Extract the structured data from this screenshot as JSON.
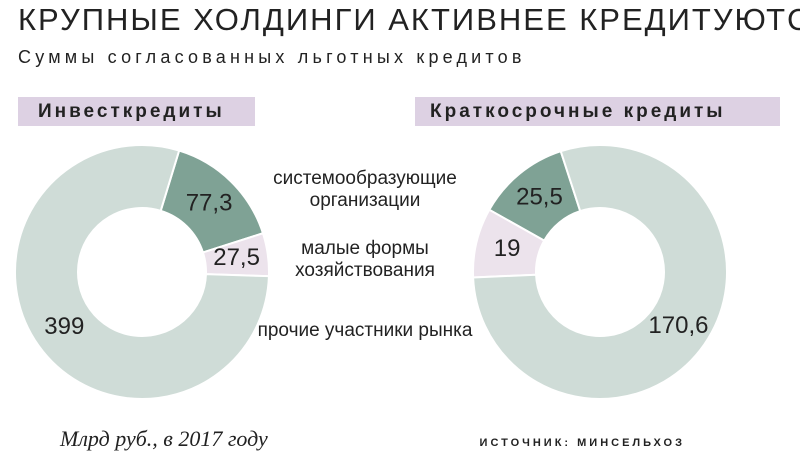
{
  "title": "КРУПНЫЕ ХОЛДИНГИ АКТИВНЕЕ КРЕДИТУЮТСЯ",
  "subtitle": "Суммы согласованных льготных кредитов",
  "legend": [
    "системообразующие организации",
    "малые формы хозяйствования",
    "прочие участники рынка"
  ],
  "note": "Млрд руб., в 2017 году",
  "source": "ИСТОЧНИК: МИНСЕЛЬХОЗ",
  "chart_data": [
    {
      "type": "donut",
      "title": "Инвесткредиты",
      "values": [
        77.3,
        27.5,
        399
      ],
      "value_labels": [
        "77,3",
        "27,5",
        "399"
      ],
      "colors": [
        "#7fa295",
        "#ece3ec",
        "#cfdcd7"
      ]
    },
    {
      "type": "donut",
      "title": "Краткосрочные кредиты",
      "values": [
        25.5,
        19,
        170.6
      ],
      "value_labels": [
        "25,5",
        "19",
        "170,6"
      ],
      "colors": [
        "#7fa295",
        "#ece3ec",
        "#cfdcd7"
      ]
    }
  ]
}
